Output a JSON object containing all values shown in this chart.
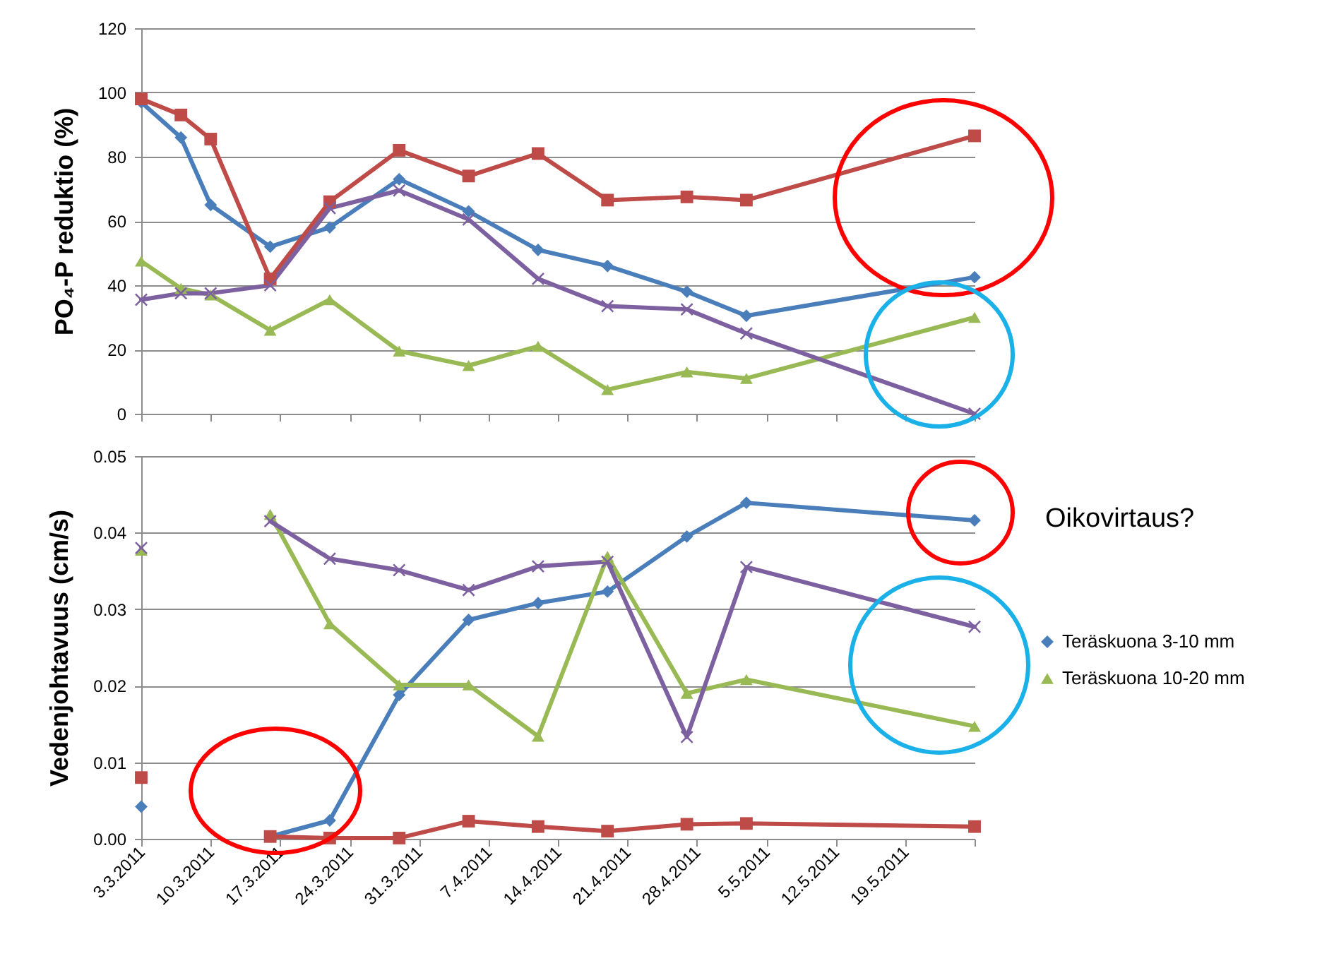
{
  "chart_data": [
    {
      "type": "line",
      "ylabel": "PO₄-P reduktio (%)",
      "x": [
        "2011-03-03",
        "2011-03-07",
        "2011-03-10",
        "2011-03-16",
        "2011-03-22",
        "2011-03-29",
        "2011-04-05",
        "2011-04-12",
        "2011-04-19",
        "2011-04-27",
        "2011-05-03",
        "2011-05-26"
      ],
      "xlim": [
        "2011-03-03",
        "2011-05-26"
      ],
      "xticks": [
        {
          "value": "2011-03-03",
          "label": null
        },
        {
          "value": "2011-03-10",
          "label": null
        },
        {
          "value": "2011-03-17",
          "label": null
        },
        {
          "value": "2011-03-24",
          "label": null
        },
        {
          "value": "2011-03-31",
          "label": null
        },
        {
          "value": "2011-04-07",
          "label": null
        },
        {
          "value": "2011-04-14",
          "label": null
        },
        {
          "value": "2011-04-21",
          "label": null
        },
        {
          "value": "2011-04-28",
          "label": null
        },
        {
          "value": "2011-05-05",
          "label": null
        },
        {
          "value": "2011-05-12",
          "label": null
        },
        {
          "value": "2011-05-19",
          "label": null
        },
        {
          "value": "2011-05-26",
          "label": null
        }
      ],
      "ylim": [
        0,
        120
      ],
      "yticks": [
        0,
        20,
        40,
        60,
        80,
        100,
        120
      ],
      "grid": "y",
      "legend": false,
      "tick_labels": "y",
      "series": [
        {
          "color": "#4a7ebb",
          "marker": "diamond",
          "values": [
            97,
            86,
            65,
            52,
            58,
            73,
            63,
            51,
            46,
            38,
            30.5,
            42.5
          ]
        },
        {
          "color": "#be4b48",
          "marker": "square",
          "values": [
            98,
            93,
            85.5,
            42,
            66,
            82,
            74,
            81,
            66.5,
            67.5,
            66.5,
            86.5
          ]
        },
        {
          "color": "#98b954",
          "marker": "triangle",
          "values": [
            47.5,
            39,
            37,
            26,
            35.5,
            19.5,
            15,
            21,
            7.5,
            13,
            11,
            30
          ]
        },
        {
          "color": "#7d60a0",
          "marker": "cross",
          "values": [
            35.5,
            37.5,
            37.5,
            40,
            64,
            69.5,
            60.5,
            42,
            33.5,
            32.5,
            25,
            0
          ]
        }
      ]
    },
    {
      "type": "line",
      "ylabel": "Vedenjohtavuus (cm/s)",
      "x": [
        "2011-03-03",
        "2011-03-07",
        "2011-03-10",
        "2011-03-16",
        "2011-03-22",
        "2011-03-29",
        "2011-04-05",
        "2011-04-12",
        "2011-04-19",
        "2011-04-27",
        "2011-05-03",
        "2011-05-26"
      ],
      "xlim": [
        "2011-03-03",
        "2011-05-26"
      ],
      "xticks": [
        {
          "value": "2011-03-03",
          "label": "3.3.2011"
        },
        {
          "value": "2011-03-10",
          "label": "10.3.2011"
        },
        {
          "value": "2011-03-17",
          "label": "17.3.2011"
        },
        {
          "value": "2011-03-24",
          "label": "24.3.2011"
        },
        {
          "value": "2011-03-31",
          "label": "31.3.2011"
        },
        {
          "value": "2011-04-07",
          "label": "7.4.2011"
        },
        {
          "value": "2011-04-14",
          "label": "14.4.2011"
        },
        {
          "value": "2011-04-21",
          "label": "21.4.2011"
        },
        {
          "value": "2011-04-28",
          "label": "28.4.2011"
        },
        {
          "value": "2011-05-05",
          "label": "5.5.2011"
        },
        {
          "value": "2011-05-12",
          "label": "12.5.2011"
        },
        {
          "value": "2011-05-19",
          "label": "19.5.2011"
        },
        {
          "value": "2011-05-26",
          "label": null
        }
      ],
      "ylim": [
        0,
        0.05
      ],
      "yticks": [
        {
          "value": 0,
          "label": "0.00"
        },
        0.01,
        0.02,
        0.03,
        0.04,
        0.05
      ],
      "grid": "y",
      "legend": "right",
      "annotations": [
        "Oikovirtaus?"
      ],
      "series": [
        {
          "name": "Teräskuona 3-10 mm",
          "color": "#4a7ebb",
          "marker": "diamond",
          "values": [
            0.0042,
            null,
            null,
            0.0003,
            0.0024,
            0.0188,
            0.0286,
            0.0308,
            0.0323,
            0.0395,
            0.0439,
            0.0416
          ]
        },
        {
          "color": "#be4b48",
          "marker": "square",
          "values": [
            0.008,
            null,
            null,
            0.0003,
            0.0001,
            0.0001,
            0.0023,
            0.0016,
            0.001,
            0.0019,
            0.002,
            0.0016
          ]
        },
        {
          "name": "Teräskuona 10-20 mm",
          "color": "#98b954",
          "marker": "triangle",
          "values": [
            0.0377,
            null,
            null,
            0.0424,
            0.0281,
            0.0201,
            0.0201,
            0.0134,
            0.0369,
            0.019,
            0.0208,
            0.0147
          ]
        },
        {
          "color": "#7d60a0",
          "marker": "cross",
          "values": [
            0.038,
            null,
            null,
            0.0415,
            0.0366,
            0.0351,
            0.0325,
            0.0356,
            0.0362,
            0.0133,
            0.0355,
            0.0277
          ]
        }
      ]
    }
  ]
}
